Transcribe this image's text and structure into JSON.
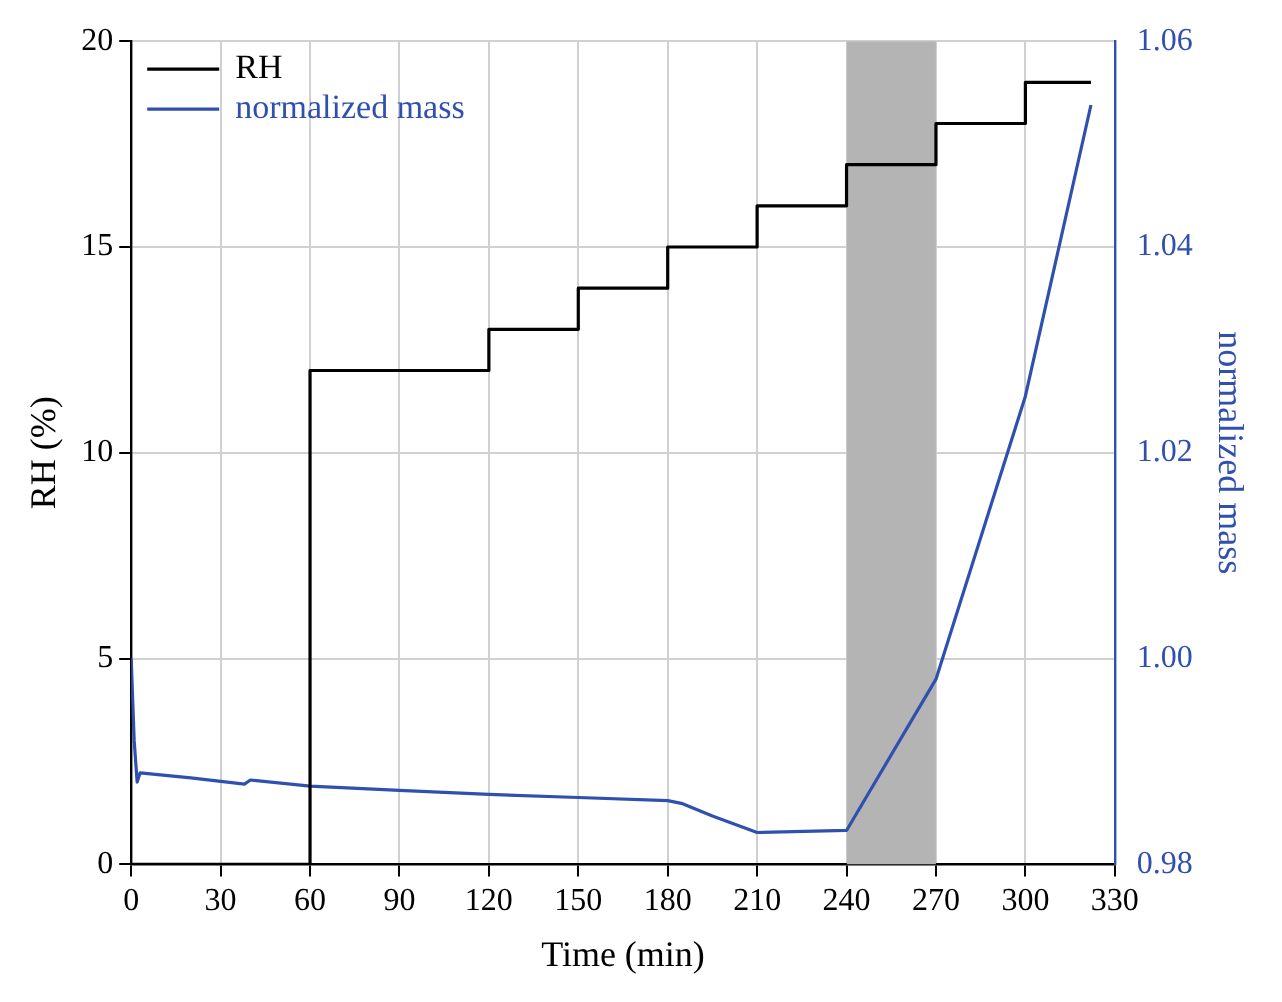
{
  "chart_data": {
    "type": "line",
    "xlabel": "Time (min)",
    "ylabel": "RH (%)",
    "y2label": "normalized mass",
    "xlim": [
      0,
      330
    ],
    "xticks": [
      0,
      30,
      60,
      90,
      120,
      150,
      180,
      210,
      240,
      270,
      300,
      330
    ],
    "ylim": [
      0,
      20
    ],
    "yticks": [
      0,
      5,
      10,
      15,
      20
    ],
    "y2lim": [
      0.98,
      1.06
    ],
    "y2ticks": [
      0.98,
      {
        "value": 1.0,
        "label": "1.00"
      },
      1.02,
      1.04,
      1.06
    ],
    "grid": true,
    "legend": "top left",
    "bands": [
      {
        "axis": "x",
        "from": 240,
        "to": 270,
        "color": "#b4b4b4"
      }
    ],
    "series": [
      {
        "name": "RH",
        "type": "step",
        "color": "#000000",
        "x": [
          0,
          60,
          120,
          150,
          180,
          210,
          240,
          270,
          300,
          322
        ],
        "values": [
          0,
          12,
          13,
          14,
          15,
          16,
          17,
          18,
          19,
          19
        ]
      },
      {
        "name": "normalized mass",
        "type": "line",
        "axis": "y2",
        "color": "#3050b0",
        "x": [
          0,
          1,
          2,
          3,
          20,
          38,
          40,
          60,
          90,
          120,
          150,
          180,
          185,
          195,
          210,
          240,
          270,
          300,
          322
        ],
        "values": [
          1.0,
          0.992,
          0.988,
          0.9889,
          0.9884,
          0.9878,
          0.9882,
          0.9876,
          0.9872,
          0.9868,
          0.9865,
          0.9862,
          0.9859,
          0.9847,
          0.9831,
          0.9833,
          0.998,
          1.0255,
          1.0538
        ]
      }
    ]
  }
}
